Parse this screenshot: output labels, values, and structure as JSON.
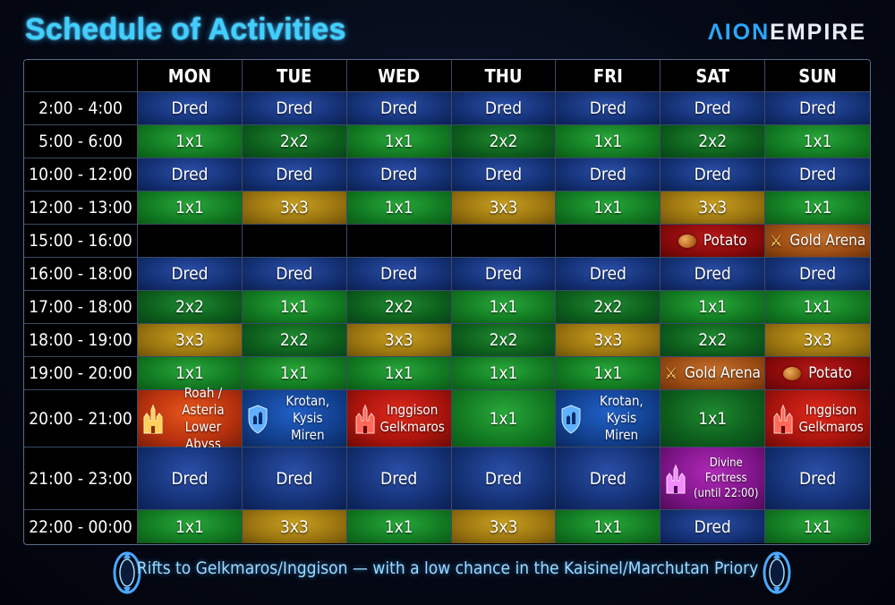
{
  "title": "Schedule of Activities",
  "logo": {
    "prefix": "ΛION",
    "suffix": "EMPIRE"
  },
  "days": [
    "MON",
    "TUE",
    "WED",
    "THU",
    "FRI",
    "SAT",
    "SUN"
  ],
  "rows": [
    {
      "time": "2:00 - 4:00",
      "cells": [
        "Dred",
        "Dred",
        "Dred",
        "Dred",
        "Dred",
        "Dred",
        "Dred"
      ]
    },
    {
      "time": "5:00 - 6:00",
      "cells": [
        "1x1",
        "2x2",
        "1x1",
        "2x2",
        "1x1",
        "2x2",
        "1x1"
      ]
    },
    {
      "time": "10:00 - 12:00",
      "cells": [
        "Dred",
        "Dred",
        "Dred",
        "Dred",
        "Dred",
        "Dred",
        "Dred"
      ]
    },
    {
      "time": "12:00 - 13:00",
      "cells": [
        "1x1",
        "3x3",
        "1x1",
        "3x3",
        "1x1",
        "3x3",
        "1x1"
      ]
    },
    {
      "time": "15:00 - 16:00",
      "cells": [
        "",
        "",
        "",
        "",
        "",
        "Potato",
        "Gold Arena"
      ]
    },
    {
      "time": "16:00 - 18:00",
      "cells": [
        "Dred",
        "Dred",
        "Dred",
        "Dred",
        "Dred",
        "Dred",
        "Dred"
      ]
    },
    {
      "time": "17:00 - 18:00",
      "cells": [
        "2x2",
        "1x1",
        "2x2",
        "1x1",
        "2x2",
        "1x1",
        "1x1"
      ]
    },
    {
      "time": "18:00 - 19:00",
      "cells": [
        "3x3",
        "2x2",
        "3x3",
        "2x2",
        "3x3",
        "2x2",
        "3x3"
      ]
    },
    {
      "time": "19:00 - 20:00",
      "cells": [
        "1x1",
        "1x1",
        "1x1",
        "1x1",
        "1x1",
        "Gold Arena",
        "Potato"
      ]
    },
    {
      "time": "20:00 - 21:00",
      "cells": [
        [
          "Roah / Asteria",
          "Lower Abyss"
        ],
        [
          "Krotan, Kysis",
          "Miren"
        ],
        [
          "Inggison",
          "Gelkmaros"
        ],
        "1x1",
        [
          "Krotan, Kysis",
          "Miren"
        ],
        "1x1",
        [
          "Inggison",
          "Gelkmaros"
        ]
      ]
    },
    {
      "time": "21:00 - 23:00",
      "cells": [
        "Dred",
        "Dred",
        "Dred",
        "Dred",
        "Dred",
        [
          "Divine Fortress",
          "(until 22:00)"
        ],
        "Dred"
      ]
    },
    {
      "time": "22:00 - 00:00",
      "cells": [
        "1x1",
        "3x3",
        "1x1",
        "3x3",
        "1x1",
        "Dred",
        "1x1"
      ]
    }
  ],
  "footer": "Rifts to Gelkmaros/Inggison — with a low chance in the Kaisinel/Marchutan Priory",
  "colors": {
    "title": "#3fd0ff",
    "dred": "#16347a",
    "solo": "#127a22",
    "trio": "#9a7410",
    "potato": "#8a0a0a",
    "gold_arena": "#9a4c14",
    "divine_fortress": "#7e1488"
  }
}
